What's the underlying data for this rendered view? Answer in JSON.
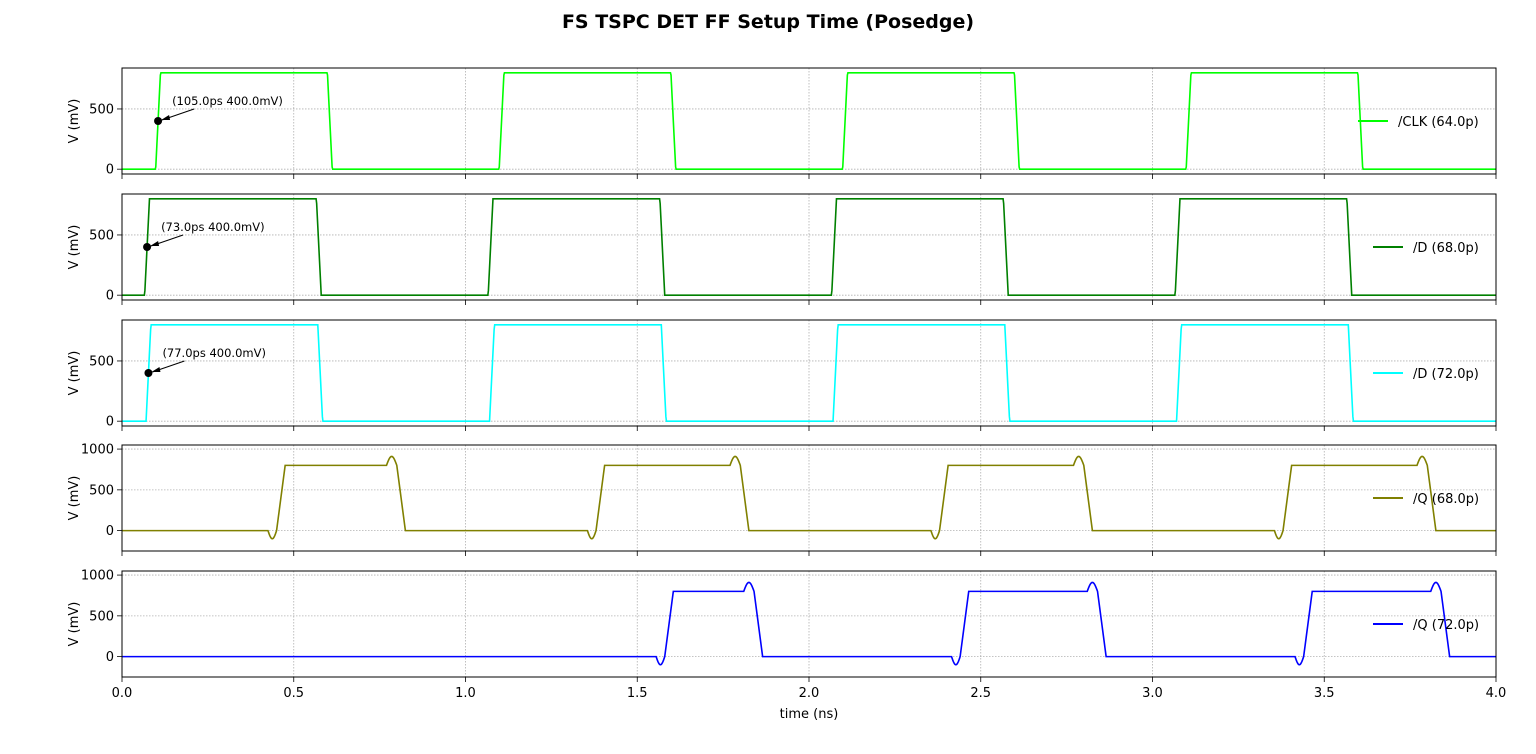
{
  "chart_data": {
    "type": "line",
    "title": "FS TSPC DET FF Setup Time (Posedge)",
    "xlabel": "time (ns)",
    "xlim": [
      0,
      4.0
    ],
    "x_ticks": [
      0.0,
      0.5,
      1.0,
      1.5,
      2.0,
      2.5,
      3.0,
      3.5,
      4.0
    ],
    "x_tick_labels": [
      "0.0",
      "0.5",
      "1.0",
      "1.5",
      "2.0",
      "2.5",
      "3.0",
      "3.5",
      "4.0"
    ],
    "grid": true,
    "legend_position": "right",
    "subplots": [
      {
        "name": "/CLK (64.0p)",
        "color": "#00ff00",
        "ylabel": "V (mV)",
        "ylim": [
          -40,
          840
        ],
        "y_ticks": [
          0,
          500
        ],
        "kind": "pulse",
        "high": 800,
        "rise_start": 0.098,
        "width": 0.5,
        "period": 1.0,
        "transition": 0.014,
        "annotation": {
          "text": "(105.0ps 400.0mV)",
          "x": 0.105,
          "y": 400
        }
      },
      {
        "name": "/D (68.0p)",
        "color": "#008000",
        "ylabel": "V (mV)",
        "ylim": [
          -40,
          840
        ],
        "y_ticks": [
          0,
          500
        ],
        "kind": "pulse",
        "high": 800,
        "rise_start": 0.066,
        "width": 0.5,
        "period": 1.0,
        "transition": 0.014,
        "annotation": {
          "text": "(73.0ps 400.0mV)",
          "x": 0.073,
          "y": 400
        }
      },
      {
        "name": "/D (72.0p)",
        "color": "#00ffff",
        "ylabel": "V (mV)",
        "ylim": [
          -40,
          840
        ],
        "y_ticks": [
          0,
          500
        ],
        "kind": "pulse",
        "high": 800,
        "rise_start": 0.07,
        "width": 0.5,
        "period": 1.0,
        "transition": 0.014,
        "annotation": {
          "text": "(77.0ps 400.0mV)",
          "x": 0.077,
          "y": 400
        }
      },
      {
        "name": "/Q (68.0p)",
        "color": "#808000",
        "ylabel": "V (mV)",
        "ylim": [
          -250,
          1050
        ],
        "y_ticks": [
          0,
          500,
          1000
        ],
        "kind": "q",
        "high": 800,
        "pulses": [
          [
            0.45,
            0.8
          ],
          [
            1.38,
            1.8
          ],
          [
            2.38,
            2.8
          ],
          [
            3.38,
            3.8
          ]
        ]
      },
      {
        "name": "/Q (72.0p)",
        "color": "#0000ff",
        "ylabel": "V (mV)",
        "ylim": [
          -250,
          1050
        ],
        "y_ticks": [
          0,
          500,
          1000
        ],
        "kind": "q",
        "high": 800,
        "pulses": [
          [
            1.58,
            1.84
          ],
          [
            2.44,
            2.84
          ],
          [
            3.44,
            3.84
          ]
        ]
      }
    ]
  }
}
